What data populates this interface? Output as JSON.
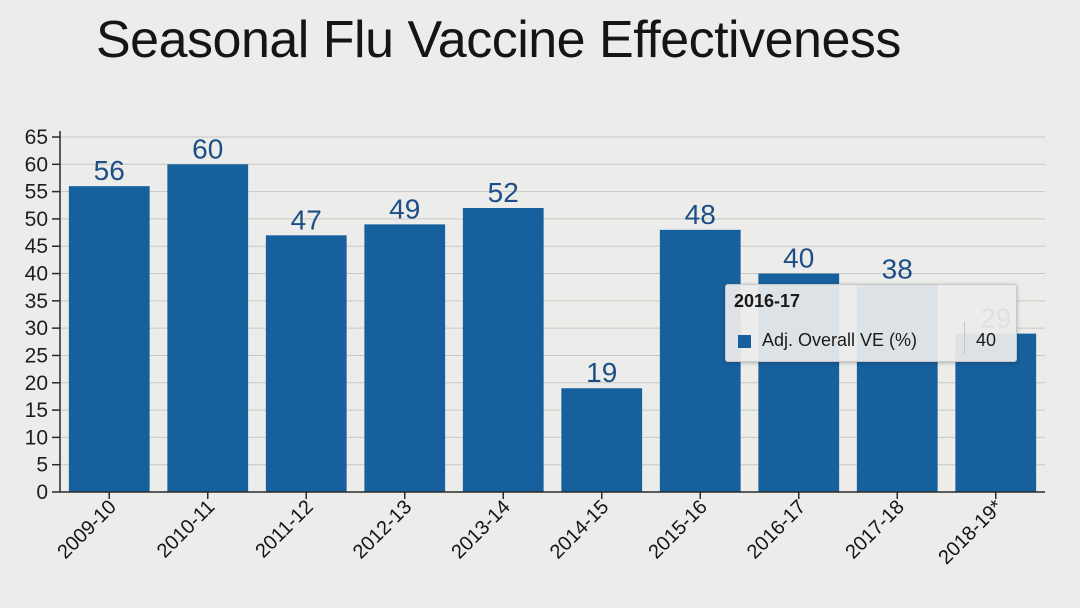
{
  "chart_data": {
    "type": "bar",
    "title": "Seasonal Flu Vaccine Effectiveness",
    "categories": [
      "2009-10",
      "2010-11",
      "2011-12",
      "2012-13",
      "2013-14",
      "2014-15",
      "2015-16",
      "2016-17",
      "2017-18",
      "2018-19*"
    ],
    "series": [
      {
        "name": "Adj. Overall VE (%)",
        "values": [
          56,
          60,
          47,
          49,
          52,
          19,
          48,
          40,
          38,
          29
        ]
      }
    ],
    "data_labels": [
      "56",
      "60",
      "47",
      "49",
      "52",
      "19",
      "48",
      "40",
      "38",
      "29"
    ],
    "ylim": [
      0,
      65
    ],
    "yticks": [
      0,
      5,
      10,
      15,
      20,
      25,
      30,
      35,
      40,
      45,
      50,
      55,
      60,
      65
    ],
    "grid": true,
    "bar_color": "#17609e"
  },
  "tooltip": {
    "title": "2016-17",
    "series_label": "Adj. Overall VE (%)",
    "value": "40"
  }
}
